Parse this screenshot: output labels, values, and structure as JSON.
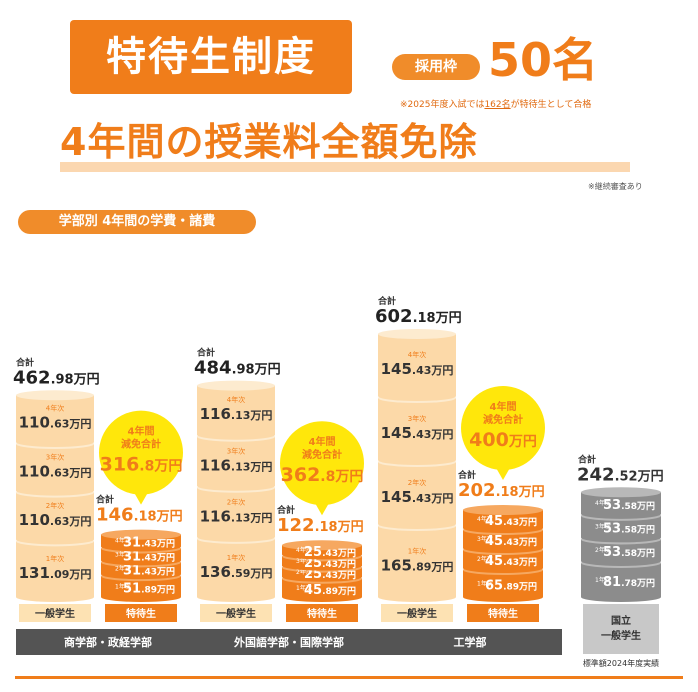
{
  "header": {
    "title": "特待生制度",
    "quota_label": "採用枠",
    "quota_value": "50名",
    "note_prefix": "※2025年度入試では",
    "note_number": "162名",
    "note_suffix": "が特待生として合格",
    "headline": "4年間の授業料全額免除",
    "continuation_note": "※継続審査あり",
    "fees_label": "学部別 4年間の学費・諸費"
  },
  "labels": {
    "total": "合計",
    "unit": "万円",
    "reduction": [
      "4年間",
      "減免合計"
    ],
    "general": "一般学生",
    "scholar": "特待生",
    "national_student": [
      "国立",
      "一般学生"
    ],
    "national_note": "標準額2024年度実績"
  },
  "colors": {
    "orange": "#f07d1a",
    "light_orange": "#fcd9a8",
    "yellow_bubble": "#ffe70b",
    "gray": "#8c8c8c",
    "dark_label": "#545454"
  },
  "chart_data": {
    "type": "bar",
    "title": "学部別 4年間の学費・諸費",
    "unit": "万円",
    "groups": [
      {
        "faculty": "商学部・政経学部",
        "general": {
          "total": 462.98,
          "years": {
            "1年次": 131.09,
            "2年次": 110.63,
            "3年次": 110.63,
            "4年次": 110.63
          }
        },
        "scholar": {
          "total": 146.18,
          "years": {
            "1年次": 51.89,
            "2年次": 31.43,
            "3年次": 31.43,
            "4年次": 31.43
          }
        },
        "reduction": 316.8
      },
      {
        "faculty": "外国語学部・国際学部",
        "general": {
          "total": 484.98,
          "years": {
            "1年次": 136.59,
            "2年次": 116.13,
            "3年次": 116.13,
            "4年次": 116.13
          }
        },
        "scholar": {
          "total": 122.18,
          "years": {
            "1年次": 45.89,
            "2年次": 25.43,
            "3年次": 25.43,
            "4年次": 25.43
          }
        },
        "reduction": 362.8
      },
      {
        "faculty": "工学部",
        "general": {
          "total": 602.18,
          "years": {
            "1年次": 165.89,
            "2年次": 145.43,
            "3年次": 145.43,
            "4年次": 145.43
          }
        },
        "scholar": {
          "total": 202.18,
          "years": {
            "1年次": 65.89,
            "2年次": 45.43,
            "3年次": 45.43,
            "4年次": 45.43
          }
        },
        "reduction": 400
      }
    ],
    "national": {
      "total": 242.52,
      "years": {
        "1年次": 81.78,
        "2年次": 53.58,
        "3年次": 53.58,
        "4年次": 53.58
      }
    }
  }
}
